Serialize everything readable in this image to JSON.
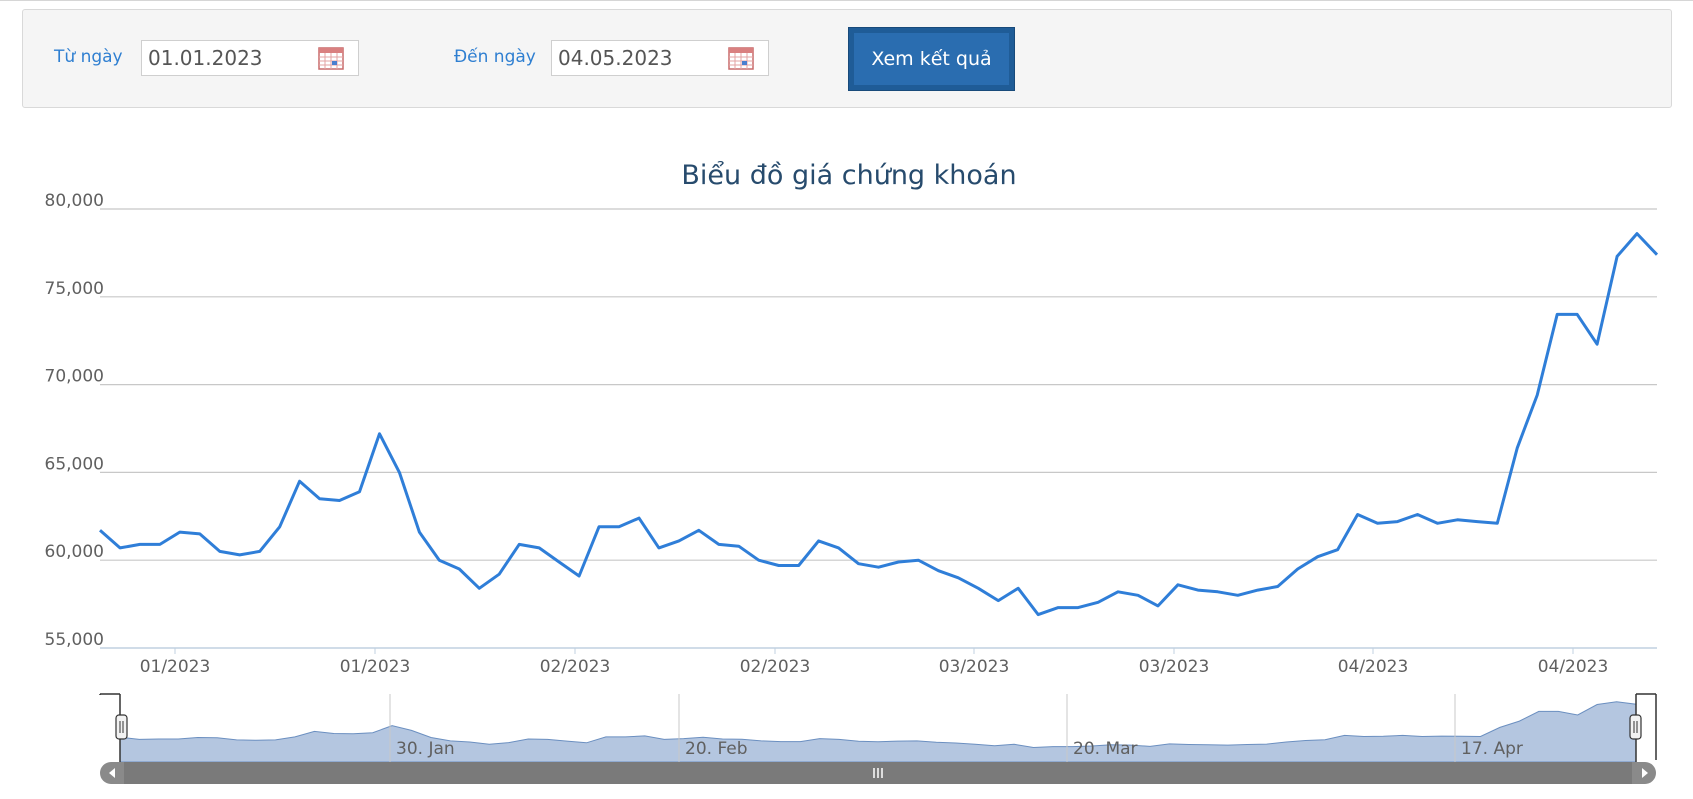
{
  "filter": {
    "from_label": "Từ ngày",
    "from_value": "01.01.2023",
    "to_label": "Đến ngày",
    "to_value": "04.05.2023",
    "submit_label": "Xem kết quả"
  },
  "colors": {
    "series_line": "#2f7ed8",
    "navigator_fill": "#b4c6e0",
    "navigator_line": "#6b8fc0",
    "button": "#2a6db0",
    "label": "#2f7fd1"
  },
  "icons": {
    "calendar": "calendar-icon",
    "scroll_left": "chevron-left-icon",
    "scroll_right": "chevron-right-icon",
    "grip": "grip-icon"
  },
  "chart_data": {
    "type": "line",
    "title": "Biểu đồ giá chứng khoán",
    "ylim": [
      55000,
      80000
    ],
    "yticks": [
      55000,
      60000,
      65000,
      70000,
      75000,
      80000
    ],
    "ytick_labels": [
      "55,000",
      "60,000",
      "65,000",
      "70,000",
      "75,000",
      "80,000"
    ],
    "xtick_labels": [
      "01/2023",
      "01/2023",
      "02/2023",
      "02/2023",
      "03/2023",
      "03/2023",
      "04/2023",
      "04/2023"
    ],
    "grid": true,
    "series": [
      {
        "values": [
          61700,
          60700,
          60900,
          60900,
          61600,
          61500,
          60500,
          60300,
          60500,
          61900,
          64500,
          63500,
          63400,
          63900,
          67200,
          65000,
          61600,
          60000,
          59500,
          58400,
          59200,
          60900,
          60700,
          59900,
          59100,
          61900,
          61900,
          62400,
          60700,
          61100,
          61700,
          60900,
          60800,
          60000,
          59700,
          59700,
          61100,
          60700,
          59800,
          59600,
          59900,
          60000,
          59400,
          59000,
          58400,
          57700,
          58400,
          56900,
          57300,
          57300,
          57600,
          58200,
          58000,
          57400,
          58600,
          58300,
          58200,
          58000,
          58300,
          58500,
          59500,
          60200,
          60600,
          62600,
          62100,
          62200,
          62600,
          62100,
          62300,
          62200,
          62100,
          66400,
          69400,
          74000,
          74000,
          72300,
          77300,
          78600,
          77400
        ]
      }
    ],
    "navigator": {
      "labels": [
        "30. Jan",
        "20. Feb",
        "20. Mar",
        "17. Apr"
      ]
    }
  }
}
